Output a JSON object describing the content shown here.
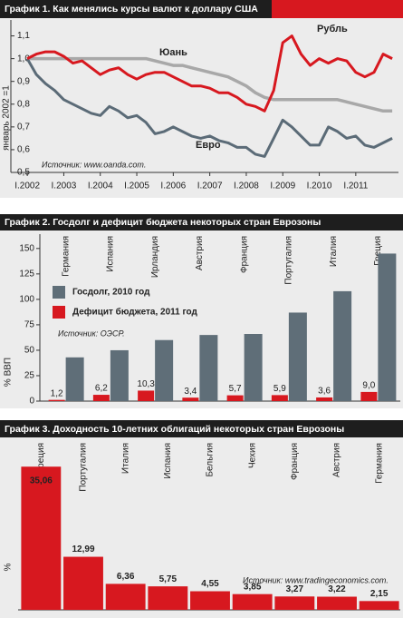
{
  "chart_data": [
    {
      "type": "line",
      "title": "График 1. Как менялись курсы валют к доллару США",
      "ylabel": "январь 2002 =1",
      "source": "Источник: www.oanda.com.",
      "x": [
        2002.0,
        2002.25,
        2002.5,
        2002.75,
        2003.0,
        2003.25,
        2003.5,
        2003.75,
        2004.0,
        2004.25,
        2004.5,
        2004.75,
        2005.0,
        2005.25,
        2005.5,
        2005.75,
        2006.0,
        2006.25,
        2006.5,
        2006.75,
        2007.0,
        2007.25,
        2007.5,
        2007.75,
        2008.0,
        2008.25,
        2008.5,
        2008.75,
        2009.0,
        2009.25,
        2009.5,
        2009.75,
        2010.0,
        2010.25,
        2010.5,
        2010.75,
        2011.0,
        2011.25,
        2011.5,
        2011.75,
        2012.0
      ],
      "xlim": [
        2001.55,
        2012.17
      ],
      "xticks": [
        {
          "value": 2002,
          "label": "I.2002"
        },
        {
          "value": 2003,
          "label": "I.2003"
        },
        {
          "value": 2004,
          "label": "I.2004"
        },
        {
          "value": 2005,
          "label": "I.2005"
        },
        {
          "value": 2006,
          "label": "I.2006"
        },
        {
          "value": 2007,
          "label": "I.2007"
        },
        {
          "value": 2008,
          "label": "I.2008"
        },
        {
          "value": 2009,
          "label": "I.2009"
        },
        {
          "value": 2010,
          "label": "I.2010"
        },
        {
          "value": 2011,
          "label": "I.2011"
        }
      ],
      "ylim": [
        0.5,
        1.17
      ],
      "yticks": [
        {
          "value": 0.5,
          "label": "0,5"
        },
        {
          "value": 0.6,
          "label": "0,6"
        },
        {
          "value": 0.7,
          "label": "0,7"
        },
        {
          "value": 0.8,
          "label": "0,8"
        },
        {
          "value": 0.9,
          "label": "0,9"
        },
        {
          "value": 1,
          "label": "1,0"
        },
        {
          "value": 1.1,
          "label": "1,1"
        }
      ],
      "series": [
        {
          "name": "Рубль",
          "color": "#d7181f",
          "values": [
            1.0,
            1.02,
            1.03,
            1.03,
            1.01,
            0.98,
            0.99,
            0.96,
            0.93,
            0.95,
            0.96,
            0.93,
            0.91,
            0.93,
            0.94,
            0.94,
            0.92,
            0.9,
            0.88,
            0.88,
            0.87,
            0.85,
            0.85,
            0.83,
            0.8,
            0.79,
            0.77,
            0.86,
            1.07,
            1.1,
            1.02,
            0.97,
            1.0,
            0.98,
            1.0,
            0.99,
            0.94,
            0.92,
            0.94,
            1.02,
            1.0
          ]
        },
        {
          "name": "Юань",
          "color": "#a8a8a8",
          "values": [
            1.0,
            1.0,
            1.0,
            1.0,
            1.0,
            1.0,
            1.0,
            1.0,
            1.0,
            1.0,
            1.0,
            1.0,
            1.0,
            1.0,
            0.99,
            0.98,
            0.97,
            0.97,
            0.96,
            0.95,
            0.94,
            0.93,
            0.92,
            0.9,
            0.88,
            0.85,
            0.83,
            0.82,
            0.82,
            0.82,
            0.82,
            0.82,
            0.82,
            0.82,
            0.82,
            0.81,
            0.8,
            0.79,
            0.78,
            0.77,
            0.77
          ]
        },
        {
          "name": "Евро",
          "color": "#5b6b77",
          "values": [
            1.0,
            0.93,
            0.89,
            0.86,
            0.82,
            0.8,
            0.78,
            0.76,
            0.75,
            0.79,
            0.77,
            0.74,
            0.75,
            0.72,
            0.67,
            0.68,
            0.7,
            0.68,
            0.66,
            0.65,
            0.66,
            0.64,
            0.63,
            0.61,
            0.61,
            0.58,
            0.57,
            0.65,
            0.73,
            0.7,
            0.66,
            0.62,
            0.62,
            0.7,
            0.68,
            0.65,
            0.66,
            0.62,
            0.61,
            0.63,
            0.65
          ]
        }
      ]
    },
    {
      "type": "bar",
      "title": "График 2. Госдолг и дефицит бюджета некоторых стран Еврозоны",
      "ylabel": "% ВВП",
      "source": "Источник: ОЭСР.",
      "categories": [
        "Германия",
        "Испания",
        "Ирландия",
        "Австрия",
        "Франция",
        "Португалия",
        "Италия",
        "Греция"
      ],
      "ylim": [
        0,
        165
      ],
      "yticks": [
        0,
        25,
        50,
        75,
        100,
        125,
        150
      ],
      "series": [
        {
          "name": "Госдолг, 2010 год",
          "color": "#5f6e78",
          "values": [
            43,
            50,
            60,
            65,
            66,
            87,
            108,
            145
          ]
        },
        {
          "name": "Дефицит бюджета, 2011 год",
          "color": "#d7181f",
          "values": [
            1.2,
            6.2,
            10.3,
            3.4,
            5.7,
            5.9,
            3.6,
            9.0
          ],
          "value_labels": [
            "1,2",
            "6,2",
            "10,3",
            "3,4",
            "5,7",
            "5,9",
            "3,6",
            "9,0"
          ]
        }
      ]
    },
    {
      "type": "bar",
      "title": "График 3. Доходность 10-летних облигаций некоторых стран Еврозоны",
      "ylabel": "%",
      "source": "Источник: www.tradingeconomics.com.",
      "categories": [
        "Греция",
        "Португалия",
        "Италия",
        "Испания",
        "Бельгия",
        "Чехия",
        "Франция",
        "Австрия",
        "Германия"
      ],
      "ylim": [
        0,
        37
      ],
      "color": "#d7181f",
      "values": [
        35.06,
        12.99,
        6.36,
        5.75,
        4.55,
        3.85,
        3.27,
        3.22,
        2.15
      ],
      "value_labels": [
        "35,06",
        "12,99",
        "6,36",
        "5,75",
        "4,55",
        "3,85",
        "3,27",
        "3,22",
        "2,15"
      ]
    }
  ]
}
